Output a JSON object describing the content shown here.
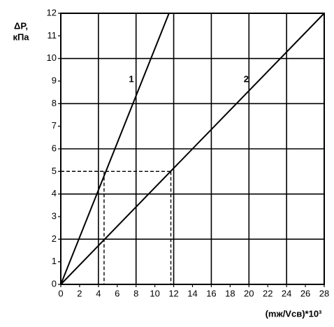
{
  "chart_data": {
    "type": "line",
    "y_label": [
      "ΔP,",
      "кПа"
    ],
    "x_label": "(mж/Vсв)*10³",
    "series": [
      {
        "name": "1",
        "color": "#000000",
        "x": [
          0,
          11.5
        ],
        "values": [
          0,
          12
        ]
      },
      {
        "name": "2",
        "color": "#000000",
        "x": [
          0,
          28
        ],
        "values": [
          0,
          12
        ]
      }
    ],
    "reference": {
      "y": 5,
      "x": [
        4.6,
        11.7
      ]
    },
    "xlim": [
      0,
      28
    ],
    "xticks": [
      0,
      2,
      4,
      6,
      8,
      10,
      12,
      14,
      16,
      18,
      20,
      22,
      24,
      26,
      28
    ],
    "ylim": [
      0,
      12
    ],
    "yticks": [
      0,
      1,
      2,
      3,
      4,
      5,
      6,
      7,
      8,
      9,
      10,
      11,
      12
    ],
    "grid": true
  }
}
